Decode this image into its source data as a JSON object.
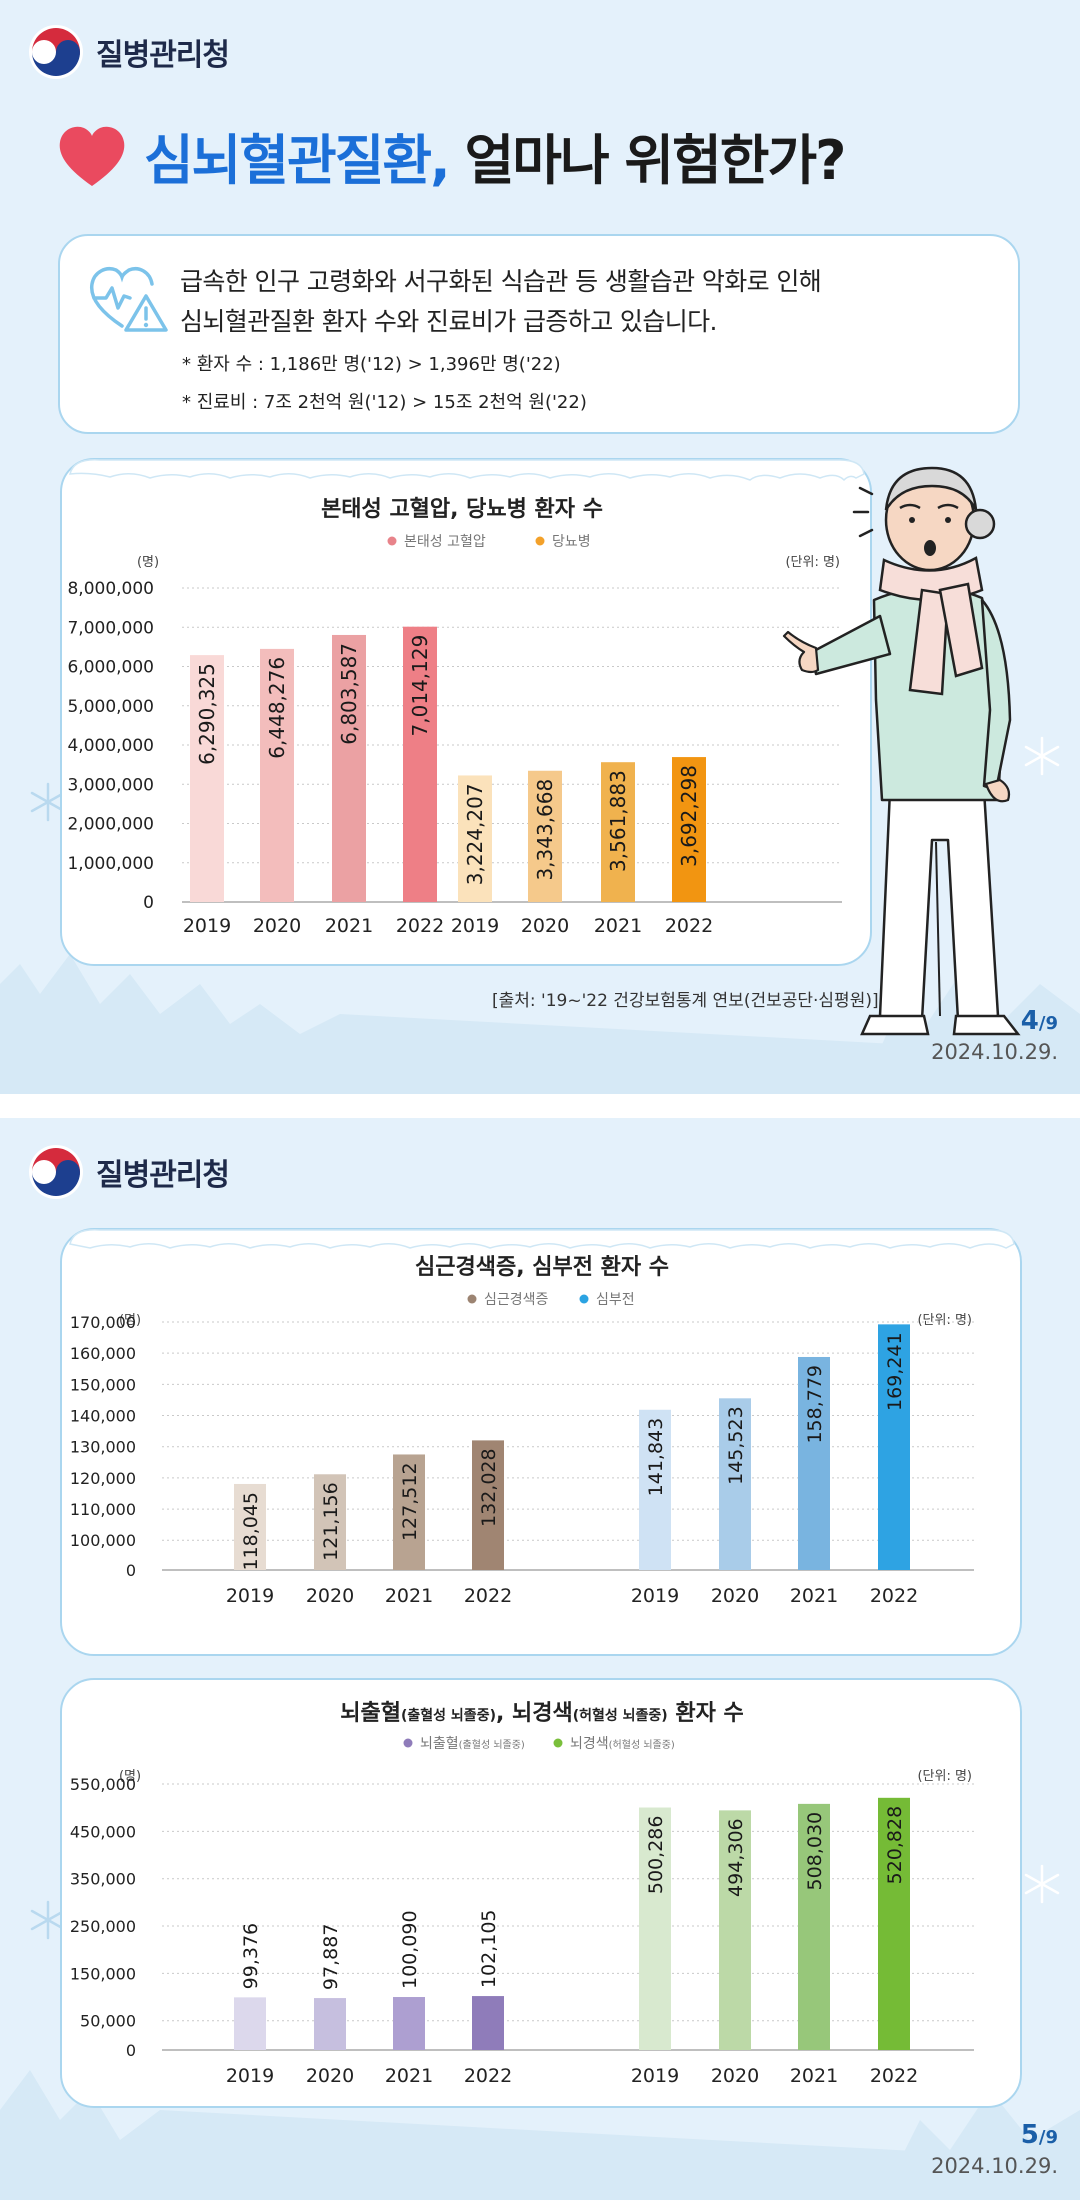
{
  "org_name": "질병관리청",
  "headline": {
    "part1": "심뇌혈관질환,",
    "part2": "얼마나 위험한가?"
  },
  "intro": {
    "line1": "급속한 인구 고령화와 서구화된 식습관 등 생활습관 악화로 인해",
    "line2": "심뇌혈관질환 환자 수와 진료비가 급증하고 있습니다.",
    "note1": "* 환자 수 : 1,186만 명('12)  >  1,396만 명('22)",
    "note2": "* 진료비 : 7조 2천억 원('12)  >  15조 2천억 원('22)"
  },
  "colors": {
    "accent": "#1b6fd8",
    "card_border": "#aad6ef",
    "background": "#e4f1fb"
  },
  "chart_data": [
    {
      "type": "bar",
      "title": "본태성 고혈압, 당뇨병 환자 수",
      "ylabel": "(명)",
      "unit": "(단위: 명)",
      "ylim": [
        0,
        8000000
      ],
      "yticks": [
        0,
        1000000,
        2000000,
        3000000,
        4000000,
        5000000,
        6000000,
        7000000,
        8000000
      ],
      "ytick_labels": [
        "0",
        "1,000,000",
        "2,000,000",
        "3,000,000",
        "4,000,000",
        "5,000,000",
        "6,000,000",
        "7,000,000",
        "8,000,000"
      ],
      "legend_position": "top-center",
      "grid": true,
      "series": [
        {
          "name": "본태성 고혈압",
          "legend_color": "#e8838a",
          "categories": [
            "2019",
            "2020",
            "2021",
            "2022"
          ],
          "values": [
            6290325,
            6448276,
            6803587,
            7014129
          ],
          "labels": [
            "6,290,325",
            "6,448,276",
            "6,803,587",
            "7,014,129"
          ],
          "colors": [
            "#f9d9d7",
            "#f3bdbc",
            "#eba1a3",
            "#ee7f86"
          ]
        },
        {
          "name": "당뇨병",
          "legend_color": "#f3a12a",
          "categories": [
            "2019",
            "2020",
            "2021",
            "2022"
          ],
          "values": [
            3224207,
            3343668,
            3561883,
            3692298
          ],
          "labels": [
            "3,224,207",
            "3,343,668",
            "3,561,883",
            "3,692,298"
          ],
          "colors": [
            "#fbe2bb",
            "#f5c98b",
            "#f0b24e",
            "#f29511"
          ]
        }
      ]
    },
    {
      "type": "bar",
      "title": "심근경색증, 심부전 환자 수",
      "ylabel": "(명)",
      "unit": "(단위: 명)",
      "ylim": [
        0,
        170000
      ],
      "yticks": [
        0,
        100000,
        110000,
        120000,
        130000,
        140000,
        150000,
        160000,
        170000
      ],
      "ytick_labels": [
        "0",
        "100,000",
        "110,000",
        "120,000",
        "130,000",
        "140,000",
        "150,000",
        "160,000",
        "170,000"
      ],
      "axis_break": true,
      "legend_position": "top-center",
      "grid": true,
      "series": [
        {
          "name": "심근경색증",
          "legend_color": "#9c8472",
          "categories": [
            "2019",
            "2020",
            "2021",
            "2022"
          ],
          "values": [
            118045,
            121156,
            127512,
            132028
          ],
          "labels": [
            "118,045",
            "121,156",
            "127,512",
            "132,028"
          ],
          "colors": [
            "#e7dcd2",
            "#d2c4b7",
            "#b8a391",
            "#a08572"
          ]
        },
        {
          "name": "심부전",
          "legend_color": "#2ba3e2",
          "categories": [
            "2019",
            "2020",
            "2021",
            "2022"
          ],
          "values": [
            141843,
            145523,
            158779,
            169241
          ],
          "labels": [
            "141,843",
            "145,523",
            "158,779",
            "169,241"
          ],
          "colors": [
            "#cfe2f4",
            "#a9cce9",
            "#79b4e0",
            "#2ea3e3"
          ]
        }
      ]
    },
    {
      "type": "bar",
      "title_main": "뇌출혈",
      "title_main_sub": "(출혈성 뇌졸중)",
      "title_mid": ", 뇌경색",
      "title_mid_sub": "(허혈성 뇌졸중)",
      "title_end": " 환자 수",
      "ylabel": "(명)",
      "unit": "(단위: 명)",
      "ylim": [
        0,
        550000
      ],
      "yticks": [
        0,
        50000,
        150000,
        250000,
        350000,
        450000,
        550000
      ],
      "ytick_labels": [
        "0",
        "50,000",
        "150,000",
        "250,000",
        "350,000",
        "450,000",
        "550,000"
      ],
      "axis_break": true,
      "legend_position": "top-center",
      "grid": true,
      "series": [
        {
          "name": "뇌출혈",
          "name_sub": "(출혈성 뇌졸중)",
          "legend_color": "#8f7cba",
          "categories": [
            "2019",
            "2020",
            "2021",
            "2022"
          ],
          "values": [
            99376,
            97887,
            100090,
            102105
          ],
          "labels": [
            "99,376",
            "97,887",
            "100,090",
            "102,105"
          ],
          "colors": [
            "#dcd8ec",
            "#c6bfdf",
            "#ad9fd1",
            "#8f7cba"
          ]
        },
        {
          "name": "뇌경색",
          "name_sub": "(허혈성 뇌졸중)",
          "legend_color": "#7abf3b",
          "categories": [
            "2019",
            "2020",
            "2021",
            "2022"
          ],
          "values": [
            500286,
            494306,
            508030,
            520828
          ],
          "labels": [
            "500,286",
            "494,306",
            "508,030",
            "520,828"
          ],
          "colors": [
            "#d8e9cf",
            "#bcd9a7",
            "#97c77a",
            "#75bb36"
          ]
        }
      ]
    }
  ],
  "source": "[출처: '19~'22 건강보험통계 연보(건보공단·심평원)]",
  "page1": {
    "page": "4",
    "total": "/9",
    "date": "2024.10.29."
  },
  "page2": {
    "page": "5",
    "total": "/9",
    "date": "2024.10.29."
  }
}
